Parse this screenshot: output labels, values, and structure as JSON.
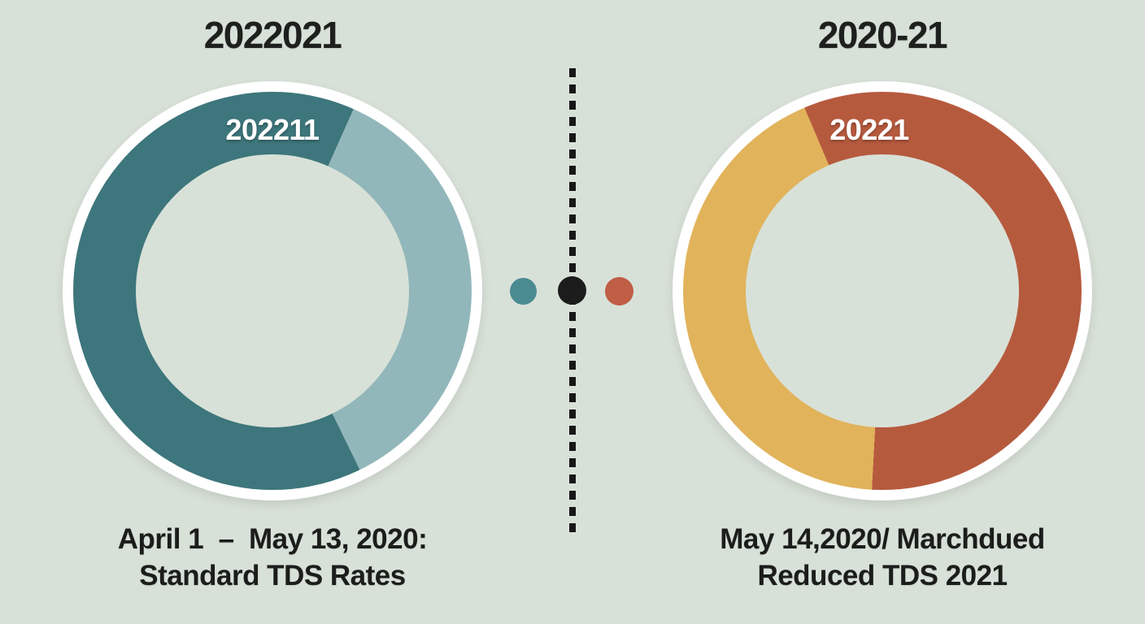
{
  "colors": {
    "background": "#d8e1d8",
    "ring_border": "#ffffff",
    "dash": "#171717",
    "text": "#1c1e1c",
    "teal_dark": "#3d767c",
    "teal_light": "#92b7ba",
    "terracotta": "#b65a3e",
    "gold": "#e1b35b"
  },
  "left_panel": {
    "title": "2022021",
    "donut_label": "202211",
    "caption_line1": "April 1  –  May 13, 2020:",
    "caption_line2": "Standard TDS Rates"
  },
  "right_panel": {
    "title": "2020-21",
    "donut_label": "20221",
    "caption_line1": "May 14,2020/ Marchdued",
    "caption_line2": "Reduced TDS 2021"
  },
  "divider": {
    "dots": [
      {
        "name": "teal-dot",
        "color": "#4a8b91"
      },
      {
        "name": "black-dot",
        "color": "#1c1c1c"
      },
      {
        "name": "red-dot",
        "color": "#c05d45"
      }
    ]
  },
  "chart_data": {
    "type": "pie",
    "subtype": "donut-comparison",
    "donuts": [
      {
        "title": "2022021",
        "inner_label": "202211",
        "caption": [
          "April 1  –  May 13, 2020:",
          "Standard TDS Rates"
        ],
        "segments": [
          {
            "name": "teal-dark",
            "color": "#3d767c",
            "from": 0,
            "to": 24
          },
          {
            "name": "teal-light",
            "color": "#92b7ba",
            "from": 24,
            "to": 154
          },
          {
            "name": "teal-dark",
            "color": "#3d767c",
            "from": 154,
            "to": 360
          }
        ],
        "approx_shares_pct": {
          "teal_dark": 64,
          "teal_light": 36
        }
      },
      {
        "title": "2020-21",
        "inner_label": "20221",
        "caption": [
          "May 14,2020/ Marchdued",
          "Reduced TDS 2021"
        ],
        "segments": [
          {
            "name": "terracotta",
            "color": "#b65a3e",
            "from": 0,
            "to": 183
          },
          {
            "name": "gold",
            "color": "#e1b35b",
            "from": 183,
            "to": 337
          },
          {
            "name": "terracotta",
            "color": "#b65a3e",
            "from": 337,
            "to": 360
          }
        ],
        "approx_shares_pct": {
          "terracotta": 57,
          "gold": 43
        }
      }
    ]
  }
}
